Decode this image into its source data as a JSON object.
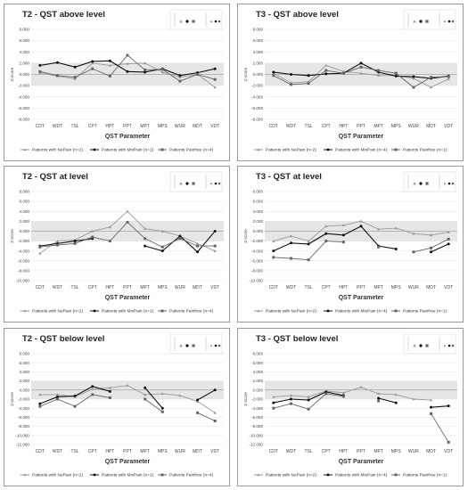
{
  "colors": {
    "nepain": "#9a9a9a",
    "mixpain": "#111111",
    "painfree": "#666666",
    "band": "#e6e6e6",
    "grid": "#dddddd",
    "axis": "#888888"
  },
  "chart_data": [
    {
      "type": "line",
      "title": "T2 - QST above level",
      "xlabel": "QST Parameter",
      "ylabel": "Z-score",
      "ylim": [
        -8,
        8
      ],
      "yticks": [
        "8.000",
        "6.000",
        "4.000",
        "2.000",
        "0.000",
        "-2.000",
        "-4.000",
        "-6.000",
        "-8.000"
      ],
      "normal_band": [
        -2,
        2
      ],
      "categories": [
        "CDT",
        "WDT",
        "TSL",
        "CPT",
        "HPT",
        "PPT",
        "MPT",
        "MPS",
        "WUR",
        "MDT",
        "VDT"
      ],
      "series": [
        {
          "name": "Patients with NePain (n=2)",
          "key": "nepain",
          "marker": "triangle",
          "values": [
            0.3,
            -0.3,
            -0.8,
            2.0,
            1.6,
            1.9,
            2.0,
            0.4,
            -0.5,
            0.0,
            -2.3
          ]
        },
        {
          "name": "Patients with MixPain (n=1)",
          "key": "mixpain",
          "marker": "circle",
          "values": [
            1.6,
            2.1,
            1.3,
            2.3,
            2.4,
            0.5,
            0.4,
            1.0,
            -0.2,
            0.3,
            1.0
          ]
        },
        {
          "name": "Patients Painfree (n=4)",
          "key": "painfree",
          "marker": "square",
          "values": [
            0.5,
            -0.2,
            -0.5,
            1.0,
            -0.3,
            3.4,
            0.8,
            0.9,
            -1.2,
            0.0,
            -0.9
          ]
        }
      ]
    },
    {
      "type": "line",
      "title": "T3 - QST above level",
      "xlabel": "QST Parameter",
      "ylabel": "Z-score",
      "ylim": [
        -8,
        8
      ],
      "yticks": [
        "8.000",
        "6.000",
        "4.000",
        "2.000",
        "0.000",
        "-2.000",
        "-4.000",
        "-6.000",
        "-8.000"
      ],
      "normal_band": [
        -2,
        2
      ],
      "categories": [
        "CDT",
        "WDT",
        "TSL",
        "CPT",
        "HPT",
        "PPT",
        "MPT",
        "MPS",
        "WUR",
        "MDT",
        "VDT"
      ],
      "series": [
        {
          "name": "Patients with NePain (n=2)",
          "key": "nepain",
          "marker": "triangle",
          "values": [
            0.2,
            -1.5,
            -1.3,
            1.6,
            0.5,
            0.2,
            -0.2,
            -0.2,
            -0.7,
            -2.3,
            -0.8
          ]
        },
        {
          "name": "Patients with MixPain (n=4)",
          "key": "mixpain",
          "marker": "circle",
          "values": [
            0.4,
            0.0,
            -0.2,
            0.1,
            0.2,
            2.0,
            0.4,
            -0.3,
            -0.4,
            -0.7,
            -0.3
          ]
        },
        {
          "name": "Patients Painfree (n=1)",
          "key": "painfree",
          "marker": "square",
          "values": [
            -0.2,
            -1.8,
            -1.6,
            0.7,
            0.2,
            1.3,
            0.7,
            0.2,
            -2.3,
            -0.5,
            -0.4
          ]
        }
      ]
    },
    {
      "type": "line",
      "title": "T2 - QST at level",
      "xlabel": "QST Parameter",
      "ylabel": "Z-score",
      "ylim": [
        -10,
        8
      ],
      "yticks": [
        "8.000",
        "6.000",
        "4.000",
        "2.000",
        "0.000",
        "-2.000",
        "-4.000",
        "-6.000",
        "-8.000",
        "-10.000"
      ],
      "normal_band": [
        -2,
        2
      ],
      "categories": [
        "CDT",
        "WDT",
        "TSL",
        "CPT",
        "HPT",
        "PPT",
        "MPT",
        "MPS",
        "WUR",
        "MDT",
        "VDT"
      ],
      "series": [
        {
          "name": "Patients with NePain (n=2)",
          "key": "nepain",
          "marker": "triangle",
          "values": [
            -4.5,
            -2.0,
            -1.8,
            0.0,
            0.8,
            4.0,
            0.5,
            0.0,
            -1.0,
            -2.5,
            -4.0
          ]
        },
        {
          "name": "Patients with MixPain (n=1)",
          "key": "mixpain",
          "marker": "circle",
          "values": [
            -3.0,
            -2.5,
            -2.0,
            -1.5,
            null,
            null,
            -3.0,
            -4.0,
            -1.0,
            -4.2,
            0.0
          ]
        },
        {
          "name": "Patients Painfree (n=4)",
          "key": "painfree",
          "marker": "square",
          "values": [
            -3.2,
            -2.8,
            -2.5,
            -1.2,
            -2.0,
            1.8,
            -1.5,
            -3.2,
            -1.5,
            -3.0,
            -3.0
          ]
        }
      ]
    },
    {
      "type": "line",
      "title": "T3 - QST at level",
      "xlabel": "QST Parameter",
      "ylabel": "Z-score",
      "ylim": [
        -10,
        8
      ],
      "yticks": [
        "8.000",
        "6.000",
        "4.000",
        "2.000",
        "0.000",
        "-2.000",
        "-4.000",
        "-6.000",
        "-8.000",
        "-10.000"
      ],
      "normal_band": [
        -2,
        2
      ],
      "categories": [
        "CDT",
        "WDT",
        "TSL",
        "CPT",
        "HPT",
        "PPT",
        "MPT",
        "MPS",
        "WUR",
        "MDT",
        "VDT"
      ],
      "series": [
        {
          "name": "Patients with NePain (n=2)",
          "key": "nepain",
          "marker": "triangle",
          "values": [
            -2.0,
            -1.0,
            -2.0,
            1.0,
            1.2,
            2.0,
            0.4,
            0.6,
            -0.5,
            -0.8,
            -0.2
          ]
        },
        {
          "name": "Patients with MixPain (n=4)",
          "key": "mixpain",
          "marker": "circle",
          "values": [
            -4.0,
            -2.4,
            -2.6,
            -0.5,
            -0.8,
            1.0,
            -3.0,
            -3.6,
            null,
            -4.2,
            -2.6
          ]
        },
        {
          "name": "Patients Painfree (n=1)",
          "key": "painfree",
          "marker": "square",
          "values": [
            -5.3,
            -5.5,
            -5.8,
            -2.0,
            -2.2,
            null,
            -3.2,
            null,
            -4.2,
            -3.4,
            -1.6
          ]
        }
      ]
    },
    {
      "type": "line",
      "title": "T2 - QST below level",
      "xlabel": "QST Parameter",
      "ylabel": "Z-score",
      "ylim": [
        -12,
        8
      ],
      "yticks": [
        "8.000",
        "6.000",
        "4.000",
        "2.000",
        "0.000",
        "-2.000",
        "-4.000",
        "-6.000",
        "-8.000",
        "-10.000",
        "-12.000"
      ],
      "normal_band": [
        -2,
        2
      ],
      "categories": [
        "CDT",
        "WDT",
        "TSL",
        "CPT",
        "HPT",
        "PPT",
        "MPT",
        "MPS",
        "WUR",
        "MDT",
        "VDT"
      ],
      "series": [
        {
          "name": "Patients with NePain (n=2)",
          "key": "nepain",
          "marker": "triangle",
          "values": [
            -1.0,
            -1.0,
            -1.5,
            0.2,
            0.5,
            1.0,
            -1.0,
            -0.8,
            -1.2,
            -2.5,
            -5.0
          ]
        },
        {
          "name": "Patients with MixPain (n=1)",
          "key": "mixpain",
          "marker": "circle",
          "values": [
            -3.0,
            -1.5,
            -1.3,
            0.8,
            -0.3,
            null,
            0.5,
            -4.0,
            null,
            -2.2,
            0.0
          ]
        },
        {
          "name": "Patients Painfree (n=4)",
          "key": "painfree",
          "marker": "square",
          "values": [
            -3.6,
            -2.0,
            -3.6,
            -1.0,
            -1.7,
            null,
            -2.0,
            -4.8,
            null,
            -5.0,
            -6.8
          ]
        }
      ]
    },
    {
      "type": "line",
      "title": "T3 - QST below level",
      "xlabel": "QST Parameter",
      "ylabel": "Z-score",
      "ylim": [
        -12,
        8
      ],
      "yticks": [
        "8.000",
        "6.000",
        "4.000",
        "2.000",
        "0.000",
        "-2.000",
        "-4.000",
        "-6.000",
        "-8.000",
        "-10.000",
        "-12.000"
      ],
      "normal_band": [
        -2,
        2
      ],
      "categories": [
        "CDT",
        "WDT",
        "TSL",
        "CPT",
        "HPT",
        "PPT",
        "MPT",
        "MPS",
        "WUR",
        "MDT",
        "VDT"
      ],
      "series": [
        {
          "name": "Patients with NePain (n=2)",
          "key": "nepain",
          "marker": "triangle",
          "values": [
            -1.5,
            -1.2,
            -1.5,
            -0.2,
            -0.6,
            0.6,
            -0.8,
            -1.0,
            -2.0,
            -2.2,
            null
          ]
        },
        {
          "name": "Patients with MixPain (n=4)",
          "key": "mixpain",
          "marker": "circle",
          "values": [
            -2.8,
            -2.0,
            -2.2,
            -0.4,
            -1.2,
            null,
            -1.8,
            -2.8,
            null,
            -3.8,
            -3.5
          ]
        },
        {
          "name": "Patients Painfree (n=1)",
          "key": "painfree",
          "marker": "square",
          "values": [
            -4.0,
            -3.0,
            -4.2,
            -0.8,
            -1.4,
            null,
            -2.4,
            null,
            null,
            -5.2,
            -11.5
          ]
        }
      ]
    }
  ]
}
